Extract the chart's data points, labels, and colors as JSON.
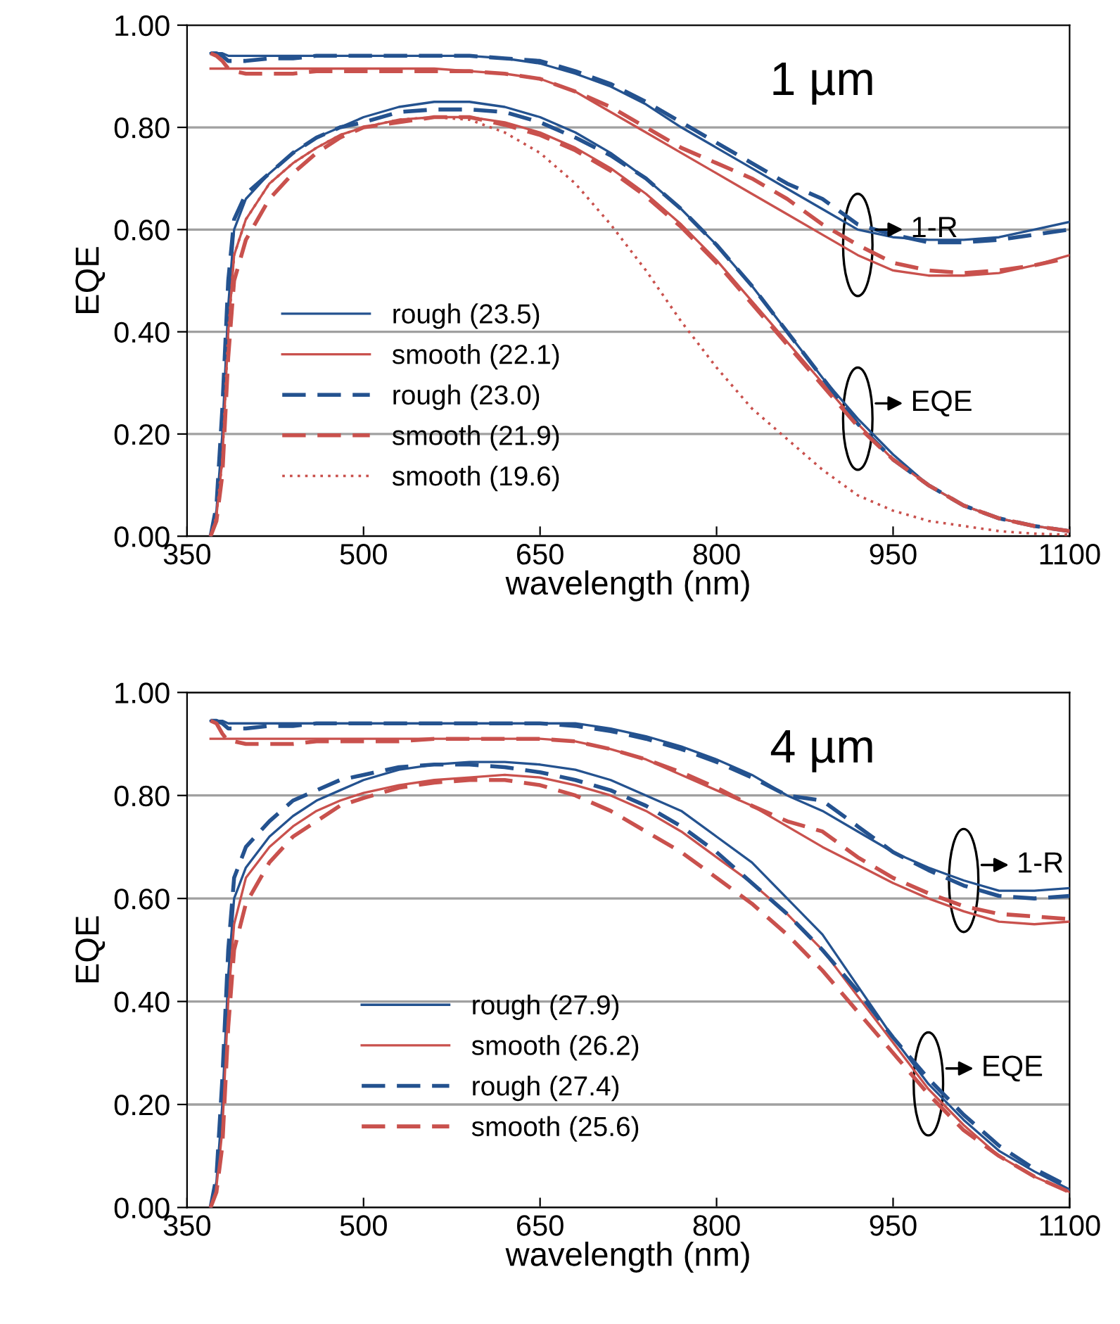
{
  "chart_data": [
    {
      "type": "line",
      "xlabel": "wavelength (nm)",
      "ylabel": "EQE",
      "grid": "y",
      "legend": "bottom left",
      "marker": "none",
      "xlim": [
        350,
        1100
      ],
      "xticks": [
        350,
        500,
        650,
        800,
        950,
        1100
      ],
      "ylim": [
        0,
        1
      ],
      "yticks": [
        {
          "value": 0,
          "label": "0.00"
        },
        {
          "value": 0.2,
          "label": "0.20"
        },
        {
          "value": 0.4,
          "label": "0.40"
        },
        {
          "value": 0.6,
          "label": "0.60"
        },
        {
          "value": 0.8,
          "label": "0.80"
        },
        {
          "value": 1,
          "label": "1.00"
        }
      ],
      "x": [
        370,
        375,
        380,
        385,
        390,
        400,
        420,
        440,
        460,
        480,
        500,
        530,
        560,
        590,
        620,
        650,
        680,
        710,
        740,
        770,
        800,
        830,
        860,
        890,
        920,
        950,
        980,
        1010,
        1040,
        1070,
        1100
      ],
      "annotations": [
        "1 µm",
        {
          "text": "1-R",
          "x": 920,
          "y": 0.57
        },
        {
          "text": "EQE",
          "x": 920,
          "y": 0.23
        }
      ],
      "series": [
        {
          "name": "rough (23.5)",
          "color": "#24528f",
          "line_style": "solid",
          "values": [
            0,
            0.05,
            0.2,
            0.45,
            0.6,
            0.66,
            0.71,
            0.75,
            0.78,
            0.8,
            0.82,
            0.84,
            0.85,
            0.85,
            0.84,
            0.82,
            0.79,
            0.75,
            0.7,
            0.64,
            0.57,
            0.49,
            0.4,
            0.31,
            0.23,
            0.16,
            0.1,
            0.06,
            0.035,
            0.02,
            0.01
          ]
        },
        {
          "name": "smooth (22.1)",
          "color": "#c9514d",
          "line_style": "solid",
          "values": [
            0,
            0.04,
            0.15,
            0.4,
            0.55,
            0.62,
            0.69,
            0.73,
            0.76,
            0.785,
            0.8,
            0.815,
            0.82,
            0.82,
            0.81,
            0.79,
            0.76,
            0.72,
            0.67,
            0.61,
            0.54,
            0.46,
            0.38,
            0.3,
            0.22,
            0.15,
            0.1,
            0.06,
            0.035,
            0.02,
            0.01
          ]
        },
        {
          "name": "rough (23.0)",
          "color": "#24528f",
          "line_style": "dashed",
          "values": [
            0,
            0.06,
            0.25,
            0.5,
            0.62,
            0.67,
            0.71,
            0.75,
            0.78,
            0.8,
            0.81,
            0.83,
            0.835,
            0.835,
            0.83,
            0.81,
            0.78,
            0.745,
            0.7,
            0.64,
            0.57,
            0.49,
            0.4,
            0.31,
            0.22,
            0.15,
            0.1,
            0.06,
            0.035,
            0.02,
            0.01
          ]
        },
        {
          "name": "smooth (21.9)",
          "color": "#c9514d",
          "line_style": "dashed",
          "values": [
            0,
            0.03,
            0.12,
            0.35,
            0.5,
            0.58,
            0.66,
            0.71,
            0.75,
            0.78,
            0.8,
            0.81,
            0.82,
            0.82,
            0.805,
            0.785,
            0.755,
            0.715,
            0.665,
            0.605,
            0.535,
            0.455,
            0.375,
            0.295,
            0.215,
            0.15,
            0.1,
            0.06,
            0.035,
            0.02,
            0.01
          ]
        },
        {
          "name": "smooth (19.6)",
          "color": "#c9514d",
          "line_style": "dotted",
          "values": [
            0,
            0.04,
            0.15,
            0.4,
            0.55,
            0.62,
            0.69,
            0.73,
            0.76,
            0.785,
            0.8,
            0.815,
            0.82,
            0.815,
            0.79,
            0.75,
            0.69,
            0.61,
            0.52,
            0.42,
            0.33,
            0.25,
            0.19,
            0.13,
            0.08,
            0.05,
            0.03,
            0.02,
            0.01,
            0.005,
            0.003
          ]
        },
        {
          "color": "#24528f",
          "line_style": "solid",
          "values": [
            0.945,
            0.945,
            0.945,
            0.94,
            0.94,
            0.94,
            0.94,
            0.94,
            0.94,
            0.94,
            0.94,
            0.94,
            0.94,
            0.94,
            0.935,
            0.925,
            0.905,
            0.88,
            0.845,
            0.8,
            0.76,
            0.72,
            0.68,
            0.64,
            0.6,
            0.585,
            0.58,
            0.58,
            0.585,
            0.6,
            0.615
          ]
        },
        {
          "color": "#c9514d",
          "line_style": "solid",
          "values": [
            0.915,
            0.915,
            0.915,
            0.915,
            0.915,
            0.915,
            0.915,
            0.915,
            0.915,
            0.915,
            0.915,
            0.915,
            0.915,
            0.91,
            0.905,
            0.895,
            0.87,
            0.83,
            0.79,
            0.75,
            0.71,
            0.67,
            0.63,
            0.59,
            0.55,
            0.52,
            0.51,
            0.51,
            0.515,
            0.53,
            0.55
          ]
        },
        {
          "color": "#24528f",
          "line_style": "dashed",
          "values": [
            0.945,
            0.945,
            0.94,
            0.93,
            0.93,
            0.93,
            0.935,
            0.935,
            0.94,
            0.94,
            0.94,
            0.94,
            0.94,
            0.94,
            0.935,
            0.93,
            0.91,
            0.885,
            0.85,
            0.81,
            0.77,
            0.73,
            0.69,
            0.66,
            0.61,
            0.59,
            0.575,
            0.575,
            0.58,
            0.59,
            0.6
          ]
        },
        {
          "color": "#c9514d",
          "line_style": "dashed",
          "values": [
            0.945,
            0.94,
            0.93,
            0.915,
            0.91,
            0.905,
            0.905,
            0.905,
            0.91,
            0.91,
            0.91,
            0.91,
            0.91,
            0.91,
            0.905,
            0.895,
            0.87,
            0.84,
            0.8,
            0.76,
            0.73,
            0.7,
            0.66,
            0.61,
            0.57,
            0.535,
            0.52,
            0.515,
            0.52,
            0.53,
            0.545
          ]
        }
      ]
    },
    {
      "type": "line",
      "xlabel": "wavelength (nm)",
      "ylabel": "EQE",
      "grid": "y",
      "legend": "bottom center",
      "marker": "none",
      "xlim": [
        350,
        1100
      ],
      "xticks": [
        350,
        500,
        650,
        800,
        950,
        1100
      ],
      "ylim": [
        0,
        1
      ],
      "yticks": [
        {
          "value": 0,
          "label": "0.00"
        },
        {
          "value": 0.2,
          "label": "0.20"
        },
        {
          "value": 0.4,
          "label": "0.40"
        },
        {
          "value": 0.6,
          "label": "0.60"
        },
        {
          "value": 0.8,
          "label": "0.80"
        },
        {
          "value": 1,
          "label": "1.00"
        }
      ],
      "x": [
        370,
        375,
        380,
        385,
        390,
        400,
        420,
        440,
        460,
        480,
        500,
        530,
        560,
        590,
        620,
        650,
        680,
        710,
        740,
        770,
        800,
        830,
        860,
        890,
        920,
        950,
        980,
        1010,
        1040,
        1070,
        1100
      ],
      "annotations": [
        "4 µm",
        {
          "text": "1-R",
          "x": 1010,
          "y": 0.635
        },
        {
          "text": "EQE",
          "x": 980,
          "y": 0.24
        }
      ],
      "series": [
        {
          "name": "rough (27.9)",
          "color": "#24528f",
          "line_style": "solid",
          "values": [
            0,
            0.05,
            0.2,
            0.45,
            0.6,
            0.66,
            0.72,
            0.76,
            0.79,
            0.81,
            0.83,
            0.85,
            0.86,
            0.865,
            0.865,
            0.86,
            0.85,
            0.83,
            0.8,
            0.77,
            0.72,
            0.67,
            0.6,
            0.53,
            0.43,
            0.33,
            0.24,
            0.17,
            0.11,
            0.07,
            0.035
          ]
        },
        {
          "name": "smooth (26.2)",
          "color": "#c9514d",
          "line_style": "solid",
          "values": [
            0,
            0.04,
            0.15,
            0.4,
            0.55,
            0.64,
            0.7,
            0.74,
            0.77,
            0.79,
            0.805,
            0.82,
            0.83,
            0.835,
            0.84,
            0.835,
            0.82,
            0.8,
            0.77,
            0.73,
            0.68,
            0.63,
            0.57,
            0.5,
            0.41,
            0.32,
            0.23,
            0.16,
            0.1,
            0.06,
            0.03
          ]
        },
        {
          "name": "rough (27.4)",
          "color": "#24528f",
          "line_style": "dashed",
          "values": [
            0,
            0.06,
            0.25,
            0.5,
            0.64,
            0.7,
            0.75,
            0.79,
            0.81,
            0.83,
            0.84,
            0.855,
            0.86,
            0.86,
            0.855,
            0.845,
            0.83,
            0.81,
            0.78,
            0.74,
            0.69,
            0.63,
            0.57,
            0.5,
            0.42,
            0.33,
            0.25,
            0.18,
            0.12,
            0.075,
            0.04
          ]
        },
        {
          "name": "smooth (25.6)",
          "color": "#c9514d",
          "line_style": "dashed",
          "values": [
            0,
            0.03,
            0.12,
            0.35,
            0.5,
            0.59,
            0.67,
            0.72,
            0.75,
            0.78,
            0.795,
            0.815,
            0.825,
            0.83,
            0.83,
            0.82,
            0.8,
            0.77,
            0.73,
            0.69,
            0.64,
            0.59,
            0.53,
            0.46,
            0.38,
            0.3,
            0.22,
            0.15,
            0.1,
            0.06,
            0.03
          ]
        },
        {
          "color": "#24528f",
          "line_style": "solid",
          "values": [
            0.945,
            0.945,
            0.945,
            0.94,
            0.94,
            0.94,
            0.94,
            0.94,
            0.94,
            0.94,
            0.94,
            0.94,
            0.94,
            0.94,
            0.94,
            0.94,
            0.94,
            0.93,
            0.915,
            0.895,
            0.87,
            0.84,
            0.8,
            0.77,
            0.73,
            0.69,
            0.66,
            0.635,
            0.615,
            0.615,
            0.62
          ]
        },
        {
          "color": "#c9514d",
          "line_style": "solid",
          "values": [
            0.91,
            0.91,
            0.91,
            0.91,
            0.91,
            0.91,
            0.91,
            0.91,
            0.91,
            0.91,
            0.91,
            0.91,
            0.91,
            0.91,
            0.91,
            0.91,
            0.905,
            0.89,
            0.87,
            0.84,
            0.81,
            0.78,
            0.74,
            0.7,
            0.665,
            0.63,
            0.6,
            0.575,
            0.555,
            0.55,
            0.555
          ]
        },
        {
          "color": "#24528f",
          "line_style": "dashed",
          "values": [
            0.945,
            0.945,
            0.94,
            0.93,
            0.93,
            0.93,
            0.935,
            0.935,
            0.94,
            0.94,
            0.94,
            0.94,
            0.94,
            0.94,
            0.94,
            0.94,
            0.935,
            0.925,
            0.91,
            0.89,
            0.865,
            0.835,
            0.8,
            0.79,
            0.74,
            0.69,
            0.655,
            0.625,
            0.605,
            0.6,
            0.605
          ]
        },
        {
          "color": "#c9514d",
          "line_style": "dashed",
          "values": [
            0.945,
            0.94,
            0.92,
            0.905,
            0.905,
            0.9,
            0.9,
            0.9,
            0.905,
            0.905,
            0.905,
            0.905,
            0.91,
            0.91,
            0.91,
            0.91,
            0.905,
            0.89,
            0.87,
            0.845,
            0.815,
            0.78,
            0.75,
            0.73,
            0.68,
            0.64,
            0.61,
            0.585,
            0.57,
            0.565,
            0.56
          ]
        }
      ]
    }
  ]
}
